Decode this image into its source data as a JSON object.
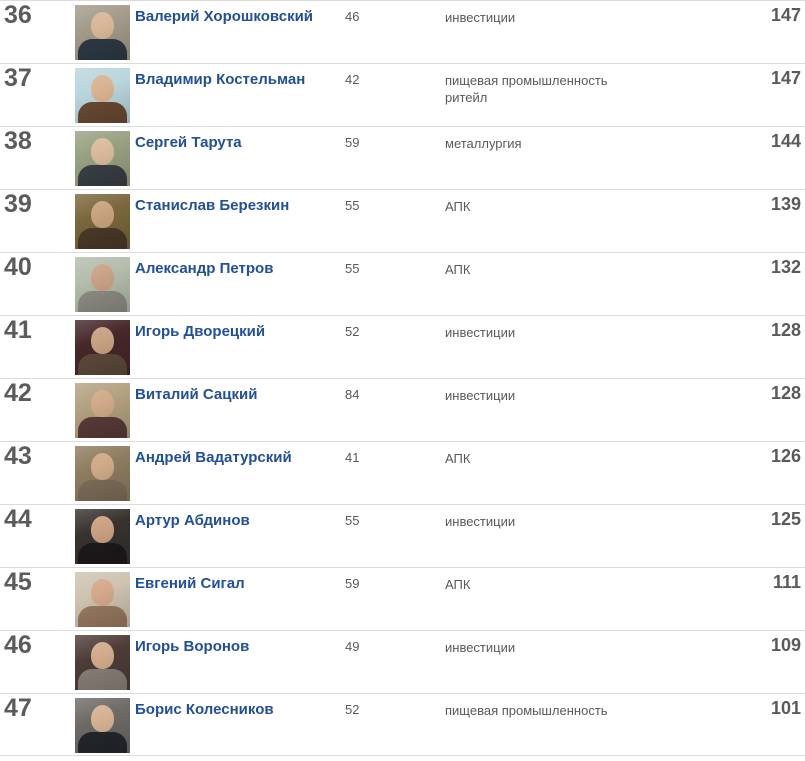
{
  "colors": {
    "name_link": "#234f94",
    "body_text": "#58595b",
    "rank_text": "#5a5b5d",
    "value_text": "#595a5c",
    "divider": "#dcdcdc"
  },
  "list": {
    "rows": [
      {
        "rank": "36",
        "name": "Валерий Хорошковский",
        "age": "46",
        "industry": "инвестиции",
        "value": "147",
        "photo": {
          "bg": "#a39a8a",
          "figure": "#2e3a45",
          "skin": "#d8b896"
        }
      },
      {
        "rank": "37",
        "name": "Владимир Костельман",
        "age": "42",
        "industry": "пищевая промышленность\nритейл",
        "value": "147",
        "photo": {
          "bg": "#b9d6dc",
          "figure": "#6a4a33",
          "skin": "#d9b393"
        }
      },
      {
        "rank": "38",
        "name": "Сергей Тарута",
        "age": "59",
        "industry": "металлургия",
        "value": "144",
        "photo": {
          "bg": "#97a181",
          "figure": "#3a3f47",
          "skin": "#d9bb9c"
        }
      },
      {
        "rank": "39",
        "name": "Станислав Березкин",
        "age": "55",
        "industry": "АПК",
        "value": "139",
        "photo": {
          "bg": "#7a673d",
          "figure": "#4a3a28",
          "skin": "#c8a27e"
        }
      },
      {
        "rank": "40",
        "name": "Александр Петров",
        "age": "55",
        "industry": "АПК",
        "value": "132",
        "photo": {
          "bg": "#b4bcab",
          "figure": "#8e8e86",
          "skin": "#c9a285"
        }
      },
      {
        "rank": "41",
        "name": "Игорь Дворецкий",
        "age": "52",
        "industry": "инвестиции",
        "value": "128",
        "photo": {
          "bg": "#46272a",
          "figure": "#5d4a3c",
          "skin": "#c7a183"
        }
      },
      {
        "rank": "42",
        "name": "Виталий Сацкий",
        "age": "84",
        "industry": "инвестиции",
        "value": "128",
        "photo": {
          "bg": "#b3a080",
          "figure": "#5a3a3a",
          "skin": "#d0aa88"
        }
      },
      {
        "rank": "43",
        "name": "Андрей Вадатурский",
        "age": "41",
        "industry": "АПК",
        "value": "126",
        "photo": {
          "bg": "#8f7c60",
          "figure": "#7d6e58",
          "skin": "#cfa988"
        }
      },
      {
        "rank": "44",
        "name": "Артур Абдинов",
        "age": "55",
        "industry": "инвестиции",
        "value": "125",
        "photo": {
          "bg": "#38322f",
          "figure": "#1d1a1c",
          "skin": "#caa083"
        }
      },
      {
        "rank": "45",
        "name": "Евгений Сигал",
        "age": "59",
        "industry": "АПК",
        "value": "111",
        "photo": {
          "bg": "#cec3b1",
          "figure": "#9a7a60",
          "skin": "#d3a98a"
        }
      },
      {
        "rank": "46",
        "name": "Игорь Воронов",
        "age": "49",
        "industry": "инвестиции",
        "value": "109",
        "photo": {
          "bg": "#4e3c38",
          "figure": "#8a8178",
          "skin": "#d2ab8c"
        }
      },
      {
        "rank": "47",
        "name": "Борис Колесников",
        "age": "52",
        "industry": "пищевая промышленность",
        "value": "101",
        "photo": {
          "bg": "#6e6a66",
          "figure": "#23272c",
          "skin": "#d6b294"
        }
      }
    ]
  }
}
